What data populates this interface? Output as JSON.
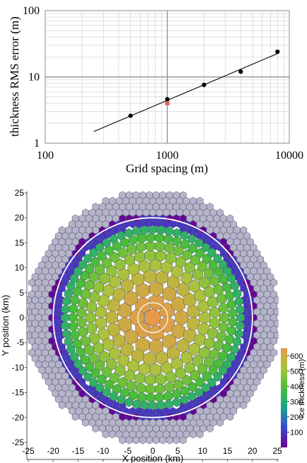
{
  "chart_data": [
    {
      "type": "line",
      "scale": "log-log",
      "xlabel": "Grid spacing (m)",
      "ylabel": "thickness RMS error (m)",
      "xlim": [
        100,
        10000
      ],
      "ylim": [
        1,
        100
      ],
      "x_tick_labels": [
        "100",
        "1000",
        "10000"
      ],
      "y_tick_labels": [
        "1",
        "10",
        "100"
      ],
      "grid": true,
      "series": [
        {
          "x": [
            500,
            1000,
            2000,
            4000,
            8000
          ],
          "y": [
            2.6,
            4.6,
            7.6,
            12.0,
            24.0
          ],
          "marker": "black-circle"
        },
        {
          "x": [
            1000
          ],
          "y": [
            4.0
          ],
          "marker": "red-square"
        },
        {
          "x": [
            250,
            8000
          ],
          "y": [
            1.5,
            22.5
          ],
          "marker": "none"
        }
      ],
      "colors": {
        "dots": "#000000",
        "highlight": "#e06060",
        "grid": "#cccccc",
        "axis": "#888888"
      }
    },
    {
      "type": "heatmap",
      "xlabel": "X position (km)",
      "ylabel": "Y position (km)",
      "x_tick_labels": [
        "-25",
        "-20",
        "-15",
        "-10",
        "-5",
        "0",
        "5",
        "10",
        "15",
        "20",
        "25"
      ],
      "y_tick_labels": [
        "25",
        "20",
        "15",
        "10",
        "5",
        "0",
        "-5",
        "-10",
        "-15",
        "-20",
        "-25"
      ],
      "xlim": [
        -26,
        26
      ],
      "ylim": [
        -26,
        26
      ],
      "grid_radius_km": 25,
      "ice_radius_km": 20,
      "max_thickness_m": 650,
      "outer_circle_radius_km": 20,
      "inner_circle_radius_km": 3,
      "colorbar": {
        "tick_labels": [
          "600",
          "500",
          "400",
          "300",
          "200",
          "100"
        ],
        "range": [
          0,
          650
        ],
        "label": "Ice thickness (m)"
      },
      "colors": {
        "empty_cell": "#b6b4c8",
        "cell_edge": "#54547a",
        "circle": "#ffffff"
      }
    }
  ]
}
